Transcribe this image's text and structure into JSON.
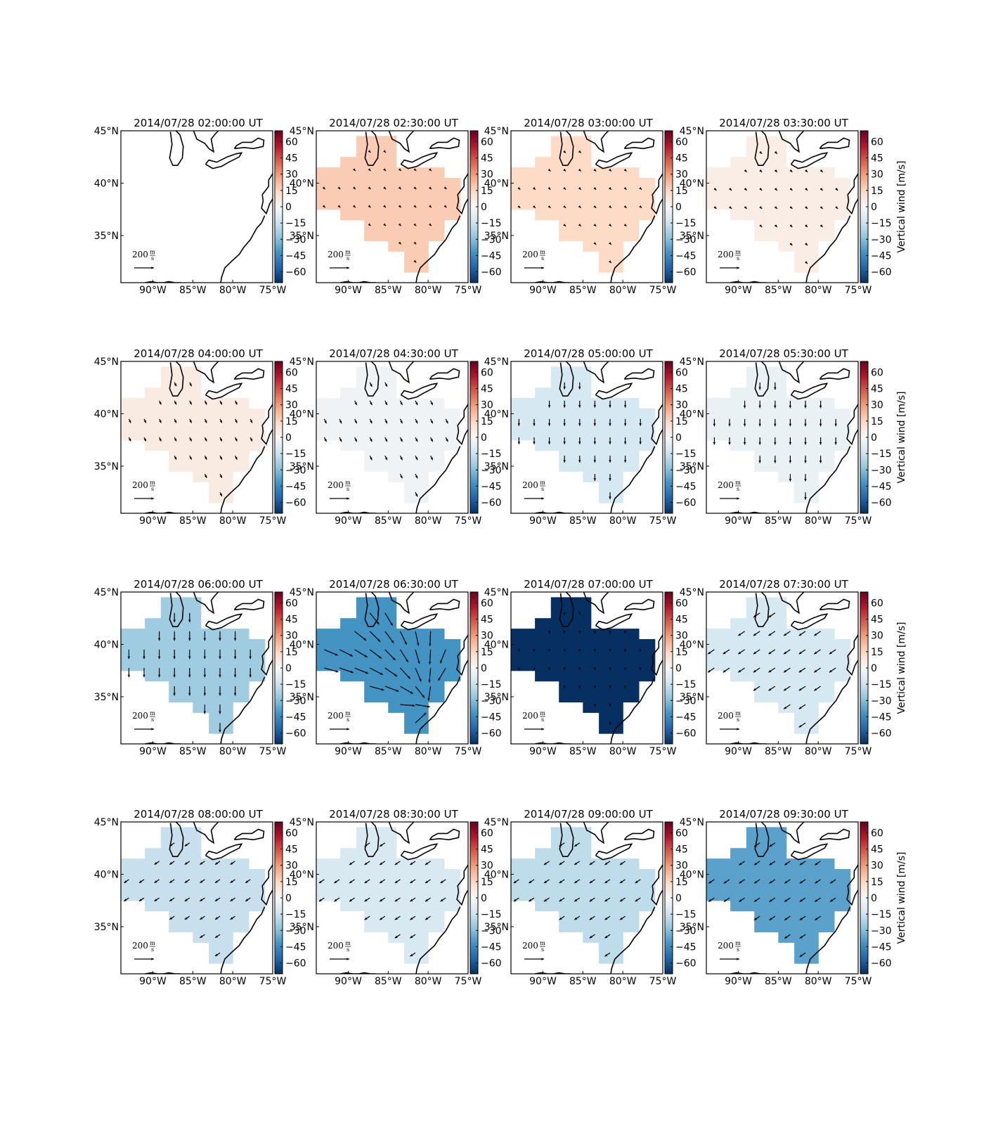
{
  "figure": {
    "colorbar_label": "Vertical wind [m/s]",
    "scale_arrow_value": "200",
    "scale_arrow_unit_num": "m",
    "scale_arrow_unit_den": "s"
  },
  "chart_data": {
    "type": "heatmap",
    "variable": "Vertical wind",
    "unit": "m/s",
    "colormap": "RdBu_r",
    "color_range": [
      -70,
      70
    ],
    "colorbar_ticks": [
      60,
      45,
      30,
      15,
      0,
      -15,
      -30,
      -45,
      -60
    ],
    "xlim": [
      -94,
      -75
    ],
    "ylim": [
      30.5,
      45
    ],
    "x_ticks": [
      "90°W",
      "85°W",
      "80°W",
      "75°W"
    ],
    "y_ticks": [
      "45°N",
      "40°N",
      "35°N"
    ],
    "scale_arrow": {
      "value": 200,
      "unit": "m/s"
    },
    "panels": [
      {
        "title": "2014/07/28 02:00:00 UT",
        "vertical_wind": null,
        "horizontal_wind": null,
        "colorbar_label_shown": false
      },
      {
        "title": "2014/07/28 02:30:00 UT",
        "vertical_wind": 18,
        "horizontal_wind": {
          "speed": 12,
          "direction": "SE"
        },
        "colorbar_label_shown": false
      },
      {
        "title": "2014/07/28 03:00:00 UT",
        "vertical_wind": 14,
        "horizontal_wind": {
          "speed": 18,
          "direction": "SE"
        },
        "colorbar_label_shown": false
      },
      {
        "title": "2014/07/28 03:30:00 UT",
        "vertical_wind": 5,
        "horizontal_wind": {
          "speed": 30,
          "direction": "SE"
        },
        "colorbar_label_shown": true
      },
      {
        "title": "2014/07/28 04:00:00 UT",
        "vertical_wind": 6,
        "horizontal_wind": {
          "speed": 45,
          "direction": "SSE"
        },
        "colorbar_label_shown": false
      },
      {
        "title": "2014/07/28 04:30:00 UT",
        "vertical_wind": -3,
        "horizontal_wind": {
          "speed": 50,
          "direction": "SSE"
        },
        "colorbar_label_shown": false
      },
      {
        "title": "2014/07/28 05:00:00 UT",
        "vertical_wind": -12,
        "horizontal_wind": {
          "speed": 70,
          "direction": "S"
        },
        "colorbar_label_shown": false
      },
      {
        "title": "2014/07/28 05:30:00 UT",
        "vertical_wind": -5,
        "horizontal_wind": {
          "speed": 75,
          "direction": "S"
        },
        "colorbar_label_shown": true
      },
      {
        "title": "2014/07/28 06:00:00 UT",
        "vertical_wind": -25,
        "horizontal_wind": {
          "speed": 95,
          "direction": "S"
        },
        "colorbar_label_shown": false
      },
      {
        "title": "2014/07/28 06:30:00 UT",
        "vertical_wind": -42,
        "horizontal_wind": {
          "speed": 150,
          "direction": "variable"
        },
        "colorbar_label_shown": false
      },
      {
        "title": "2014/07/28 07:00:00 UT",
        "vertical_wind": -70,
        "horizontal_wind": {
          "speed": 20,
          "direction": "S"
        },
        "colorbar_label_shown": false
      },
      {
        "title": "2014/07/28 07:30:00 UT",
        "vertical_wind": -12,
        "horizontal_wind": {
          "speed": 80,
          "direction": "SW"
        },
        "colorbar_label_shown": true
      },
      {
        "title": "2014/07/28 08:00:00 UT",
        "vertical_wind": -16,
        "horizontal_wind": {
          "speed": 60,
          "direction": "SW"
        },
        "colorbar_label_shown": false
      },
      {
        "title": "2014/07/28 08:30:00 UT",
        "vertical_wind": -11,
        "horizontal_wind": {
          "speed": 65,
          "direction": "SW"
        },
        "colorbar_label_shown": false
      },
      {
        "title": "2014/07/28 09:00:00 UT",
        "vertical_wind": -18,
        "horizontal_wind": {
          "speed": 65,
          "direction": "SW"
        },
        "colorbar_label_shown": false
      },
      {
        "title": "2014/07/28 09:30:00 UT",
        "vertical_wind": -38,
        "horizontal_wind": {
          "speed": 70,
          "direction": "SW"
        },
        "colorbar_label_shown": true
      }
    ]
  }
}
